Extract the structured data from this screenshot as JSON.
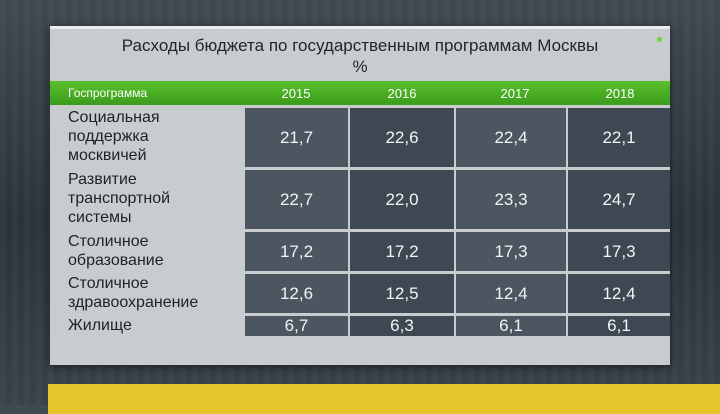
{
  "title": "Расходы бюджета по государственным программам Москвы",
  "unit": "%",
  "header": {
    "name_label": "Госпрограмма",
    "years": [
      "2015",
      "2016",
      "2017",
      "2018"
    ]
  },
  "rows": [
    {
      "label_lines": [
        "Социальная",
        "поддержка",
        "москвичей"
      ],
      "values": [
        "21,7",
        "22,6",
        "22,4",
        "22,1"
      ]
    },
    {
      "label_lines": [
        "Развитие",
        "транспортной",
        "системы"
      ],
      "values": [
        "22,7",
        "22,0",
        "23,3",
        "24,7"
      ]
    },
    {
      "label_lines": [
        "Столичное",
        "образование"
      ],
      "values": [
        "17,2",
        "17,2",
        "17,3",
        "17,3"
      ]
    },
    {
      "label_lines": [
        "Столичное",
        "здравоохранение"
      ],
      "values": [
        "12,6",
        "12,5",
        "12,4",
        "12,4"
      ]
    },
    {
      "label_lines": [
        "Жилище"
      ],
      "values": [
        "6,7",
        "6,3",
        "6,1",
        "6,1"
      ]
    }
  ],
  "colors": {
    "header_green": "#4caf24",
    "panel_bg": "#c9ccce",
    "cell_dark": "#3d4852",
    "ticker_yellow": "#e4c52a"
  }
}
